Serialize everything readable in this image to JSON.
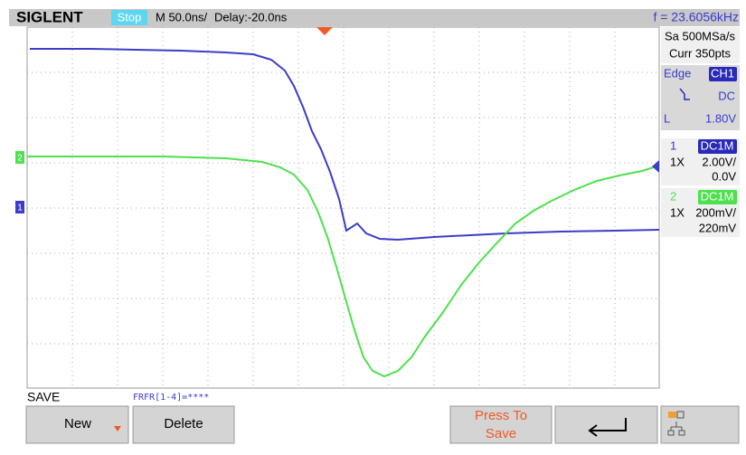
{
  "header": {
    "brand": "SIGLENT",
    "status": "Stop",
    "timebase": "M 50.0ns/",
    "delay": "Delay:-20.0ns",
    "frequency": "f = 23.6056kHz"
  },
  "markers": {
    "ch1": "1",
    "ch2": "2"
  },
  "panel": {
    "sample_rate": "Sa 500MSa/s",
    "memory": "Curr 350pts",
    "trigger": {
      "type": "Edge",
      "source": "CH1",
      "coupling": "DC",
      "level_label": "L",
      "level": "1.80V"
    },
    "channels": [
      {
        "number": "1",
        "impedance": "DC1M",
        "probe": "1X",
        "scale": "2.00V/",
        "offset": "0.0V"
      },
      {
        "number": "2",
        "impedance": "DC1M",
        "probe": "1X",
        "scale": "200mV/",
        "offset": "220mV"
      }
    ]
  },
  "footer": {
    "menu_title": "SAVE",
    "file_pattern": "FRFR[1-4]=****",
    "buttons": [
      "New",
      "Delete",
      "Press To Save"
    ]
  }
}
